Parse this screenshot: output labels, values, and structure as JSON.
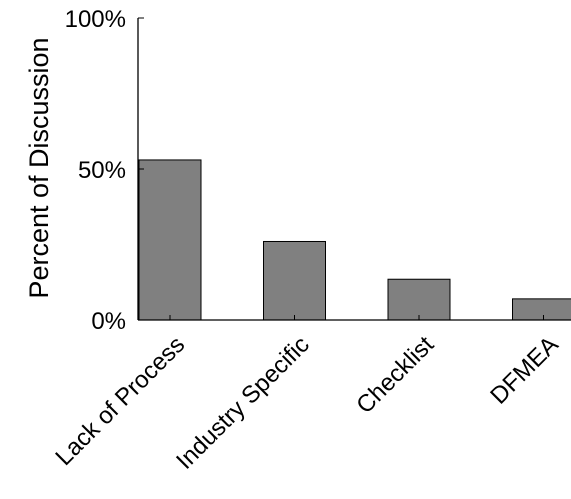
{
  "chart_data": {
    "type": "bar",
    "title": "",
    "xlabel": "",
    "ylabel": "Percent of Discussion",
    "categories": [
      "Lack of Process",
      "Industry Specific",
      "Checklist",
      "DFMEA"
    ],
    "values": [
      53,
      26,
      13.5,
      7
    ],
    "ylim": [
      0,
      100
    ],
    "yticks": [
      {
        "value": 0,
        "label": "0%"
      },
      {
        "value": 50,
        "label": "50%"
      },
      {
        "value": 100,
        "label": "100%"
      }
    ],
    "grid": false,
    "legend": "none",
    "bar_color": "#808080"
  }
}
